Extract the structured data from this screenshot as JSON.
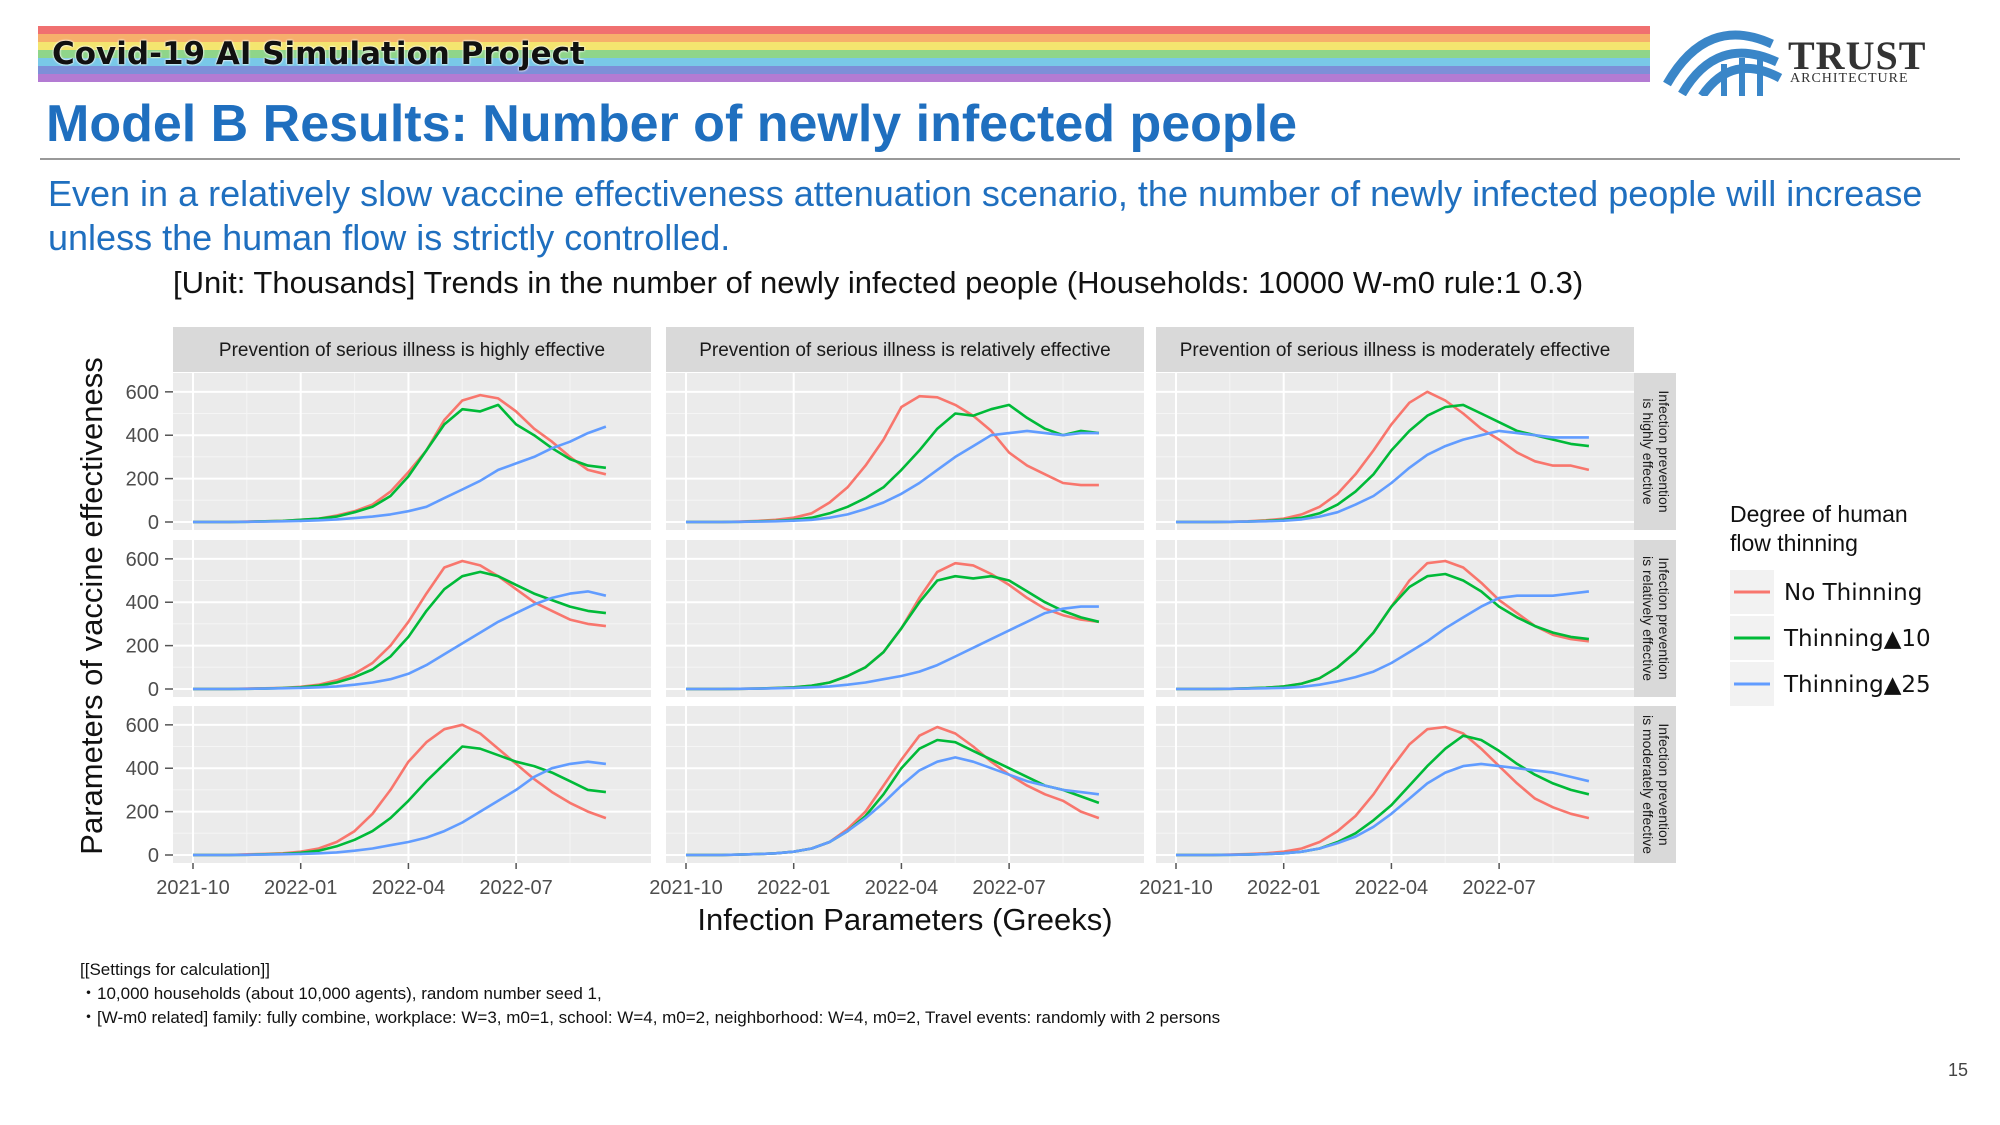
{
  "header": {
    "banner": "Covid-19 AI Simulation Project",
    "logo_text": "TRUST",
    "logo_sub": "ARCHITECTURE",
    "colors": {
      "rainbow": [
        "#f07070",
        "#f6b06b",
        "#f4e56f",
        "#8fd58a",
        "#79c8e8",
        "#7d8fd8",
        "#b37bd3"
      ],
      "title": "#1f6fbf",
      "logo": "#3a86c8"
    },
    "logo_icon": "arches-logo-icon"
  },
  "slide": {
    "title": "Model B Results: Number of newly infected people",
    "subtitle": "Even in a relatively slow vaccine effectiveness attenuation scenario, the number of newly infected people will increase unless the human flow is strictly controlled.",
    "chart_title": "[Unit: Thousands] Trends in the number of newly infected people (Households: 10000 W-m0 rule:1 0.3)",
    "settings_heading": "[[Settings for calculation]]",
    "settings_line1": "・10,000 households (about 10,000 agents), random number seed 1,",
    "settings_line2": "・[W-m0 related] family: fully combine, workplace: W=3, m0=1, school: W=4, m0=2, neighborhood: W=4, m0=2, Travel events: randomly with 2 persons",
    "page_number": "15"
  },
  "chart_data": {
    "type": "line",
    "title": "[Unit: Thousands] Trends in the number of newly infected people (Households: 10000 W-m0 rule:1 0.3)",
    "xlabel": "Infection Parameters (Greeks)",
    "ylabel": "Parameters of vaccine effectiveness",
    "x_ticks": [
      "2021-10",
      "2022-01",
      "2022-04",
      "2022-07"
    ],
    "y_ticks": [
      0,
      200,
      400,
      600
    ],
    "ylim": [
      0,
      650
    ],
    "grid": true,
    "col_facets": [
      "Prevention of serious illness is highly effective",
      "Prevention of serious illness is relatively effective",
      "Prevention of serious illness is moderately effective"
    ],
    "row_facets": [
      "Infection prevention is highly effective",
      "Infection prevention is relatively effective",
      "Infection prevention is moderately effective"
    ],
    "legend": {
      "title": "Degree of human flow thinning",
      "placement": "right",
      "entries": [
        {
          "name": "No Thinning",
          "color": "#f8766d"
        },
        {
          "name": "Thinning▲10",
          "color": "#00ba38"
        },
        {
          "name": "Thinning▲25",
          "color": "#619cff"
        }
      ]
    },
    "x_months": [
      0,
      0.5,
      1,
      1.5,
      2,
      2.5,
      3,
      3.5,
      4,
      4.5,
      5,
      5.5,
      6,
      6.5,
      7,
      7.5,
      8,
      8.5,
      9,
      9.5,
      10,
      10.5,
      11,
      11.5
    ],
    "x_note_origin": "2021-10",
    "panels": [
      {
        "row": 0,
        "col": 0,
        "series": [
          [
            0,
            0,
            0,
            2,
            3,
            5,
            10,
            15,
            30,
            50,
            80,
            140,
            230,
            330,
            470,
            560,
            585,
            570,
            510,
            430,
            370,
            300,
            240,
            220
          ],
          [
            0,
            0,
            0,
            1,
            3,
            5,
            10,
            15,
            25,
            45,
            70,
            120,
            210,
            330,
            450,
            520,
            510,
            540,
            450,
            400,
            340,
            290,
            260,
            250
          ],
          [
            0,
            0,
            0,
            1,
            2,
            3,
            5,
            8,
            12,
            18,
            25,
            35,
            50,
            70,
            110,
            150,
            190,
            240,
            270,
            300,
            340,
            370,
            410,
            440
          ]
        ]
      },
      {
        "row": 0,
        "col": 1,
        "series": [
          [
            0,
            0,
            0,
            2,
            5,
            10,
            20,
            40,
            90,
            160,
            260,
            380,
            530,
            580,
            575,
            540,
            490,
            420,
            320,
            260,
            220,
            180,
            170,
            170
          ],
          [
            0,
            0,
            0,
            1,
            3,
            5,
            10,
            20,
            40,
            70,
            110,
            160,
            240,
            330,
            430,
            500,
            490,
            520,
            540,
            480,
            430,
            400,
            420,
            410
          ],
          [
            0,
            0,
            0,
            1,
            2,
            3,
            6,
            10,
            20,
            35,
            60,
            90,
            130,
            180,
            240,
            300,
            350,
            400,
            410,
            420,
            410,
            400,
            410,
            410
          ]
        ]
      },
      {
        "row": 0,
        "col": 2,
        "series": [
          [
            0,
            0,
            0,
            1,
            3,
            8,
            15,
            35,
            70,
            130,
            220,
            330,
            450,
            550,
            600,
            560,
            500,
            430,
            380,
            320,
            280,
            260,
            260,
            240
          ],
          [
            0,
            0,
            0,
            1,
            2,
            5,
            10,
            20,
            40,
            80,
            140,
            220,
            330,
            420,
            490,
            530,
            540,
            500,
            460,
            420,
            400,
            380,
            360,
            350
          ],
          [
            0,
            0,
            0,
            1,
            2,
            3,
            6,
            12,
            25,
            45,
            80,
            120,
            180,
            250,
            310,
            350,
            380,
            400,
            420,
            410,
            400,
            390,
            390,
            390
          ]
        ]
      },
      {
        "row": 1,
        "col": 0,
        "series": [
          [
            0,
            0,
            0,
            2,
            3,
            5,
            10,
            20,
            40,
            70,
            120,
            200,
            310,
            440,
            560,
            590,
            570,
            520,
            460,
            400,
            360,
            320,
            300,
            290
          ],
          [
            0,
            0,
            0,
            1,
            2,
            4,
            8,
            15,
            30,
            55,
            90,
            150,
            240,
            360,
            460,
            520,
            540,
            520,
            480,
            440,
            410,
            380,
            360,
            350
          ],
          [
            0,
            0,
            0,
            1,
            2,
            3,
            5,
            8,
            12,
            20,
            30,
            45,
            70,
            110,
            160,
            210,
            260,
            310,
            350,
            390,
            420,
            440,
            450,
            430
          ]
        ]
      },
      {
        "row": 1,
        "col": 1,
        "series": [
          [
            0,
            0,
            0,
            1,
            2,
            4,
            8,
            15,
            30,
            60,
            100,
            170,
            280,
            420,
            540,
            580,
            570,
            530,
            480,
            420,
            370,
            340,
            320,
            310
          ],
          [
            0,
            0,
            0,
            1,
            2,
            4,
            8,
            15,
            30,
            60,
            100,
            170,
            280,
            400,
            500,
            520,
            510,
            520,
            500,
            450,
            400,
            360,
            330,
            310
          ],
          [
            0,
            0,
            0,
            1,
            2,
            3,
            5,
            8,
            12,
            20,
            30,
            45,
            60,
            80,
            110,
            150,
            190,
            230,
            270,
            310,
            350,
            370,
            380,
            380
          ]
        ]
      },
      {
        "row": 1,
        "col": 2,
        "series": [
          [
            0,
            0,
            0,
            1,
            3,
            6,
            12,
            25,
            50,
            100,
            170,
            260,
            380,
            500,
            580,
            590,
            560,
            490,
            410,
            350,
            290,
            250,
            230,
            220
          ],
          [
            0,
            0,
            0,
            1,
            3,
            6,
            12,
            25,
            50,
            100,
            170,
            260,
            380,
            470,
            520,
            530,
            500,
            450,
            380,
            330,
            290,
            260,
            240,
            230
          ],
          [
            0,
            0,
            0,
            1,
            2,
            3,
            5,
            10,
            20,
            35,
            55,
            80,
            120,
            170,
            220,
            280,
            330,
            380,
            420,
            430,
            430,
            430,
            440,
            450
          ]
        ]
      },
      {
        "row": 2,
        "col": 0,
        "series": [
          [
            0,
            0,
            0,
            3,
            5,
            8,
            15,
            30,
            60,
            110,
            190,
            300,
            430,
            520,
            580,
            600,
            560,
            490,
            420,
            350,
            290,
            240,
            200,
            170
          ],
          [
            0,
            0,
            0,
            1,
            3,
            5,
            10,
            20,
            40,
            70,
            110,
            170,
            250,
            340,
            420,
            500,
            490,
            460,
            430,
            410,
            380,
            340,
            300,
            290
          ],
          [
            0,
            0,
            0,
            1,
            2,
            3,
            5,
            8,
            12,
            20,
            30,
            45,
            60,
            80,
            110,
            150,
            200,
            250,
            300,
            360,
            400,
            420,
            430,
            420
          ]
        ]
      },
      {
        "row": 2,
        "col": 1,
        "series": [
          [
            0,
            0,
            0,
            2,
            4,
            8,
            15,
            30,
            60,
            120,
            200,
            320,
            440,
            550,
            590,
            560,
            500,
            430,
            370,
            320,
            280,
            250,
            200,
            170
          ],
          [
            0,
            0,
            0,
            2,
            4,
            8,
            15,
            30,
            60,
            110,
            180,
            280,
            400,
            490,
            530,
            520,
            480,
            440,
            400,
            360,
            320,
            300,
            270,
            240
          ],
          [
            0,
            0,
            0,
            2,
            4,
            8,
            15,
            30,
            60,
            110,
            170,
            240,
            320,
            390,
            430,
            450,
            430,
            400,
            370,
            340,
            320,
            300,
            290,
            280
          ]
        ]
      },
      {
        "row": 2,
        "col": 2,
        "series": [
          [
            0,
            0,
            0,
            2,
            4,
            8,
            15,
            30,
            60,
            110,
            180,
            280,
            400,
            510,
            580,
            590,
            560,
            490,
            410,
            330,
            260,
            220,
            190,
            170
          ],
          [
            0,
            0,
            0,
            1,
            2,
            4,
            8,
            15,
            30,
            60,
            100,
            160,
            230,
            320,
            410,
            490,
            550,
            530,
            480,
            420,
            370,
            330,
            300,
            280
          ],
          [
            0,
            0,
            0,
            1,
            2,
            4,
            8,
            15,
            30,
            55,
            85,
            130,
            190,
            260,
            330,
            380,
            410,
            420,
            410,
            400,
            390,
            380,
            360,
            340
          ]
        ]
      }
    ]
  }
}
